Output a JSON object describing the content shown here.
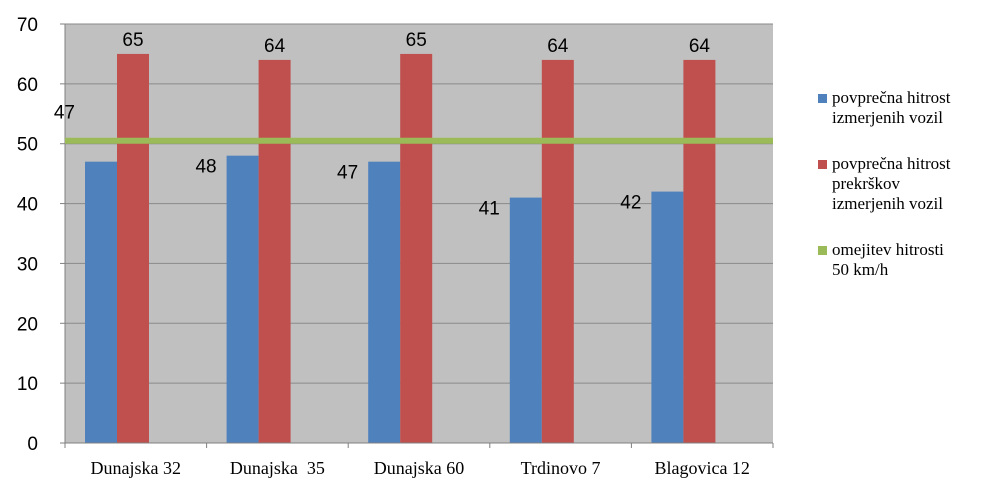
{
  "chart_data": {
    "type": "bar",
    "categories": [
      "Dunajska 32",
      "Dunajska  35",
      "Dunajska 60",
      "Trdinovo 7",
      "Blagovica 12"
    ],
    "series": [
      {
        "name": "povprečna hitrost izmerjenih vozil",
        "values": [
          47,
          48,
          47,
          41,
          42
        ],
        "color": "#4f81bd"
      },
      {
        "name": "povprečna hitrost prekrškov izmerjenih vozil",
        "values": [
          65,
          64,
          65,
          64,
          64
        ],
        "color": "#c0504d"
      }
    ],
    "reference_line": {
      "name": "omejitev hitrosti 50 km/h",
      "value": 50.5,
      "color": "#9bbb59"
    },
    "ylim": [
      0,
      70
    ],
    "yticks": [
      "0",
      "10",
      "20",
      "30",
      "40",
      "50",
      "60",
      "70"
    ],
    "grid": true,
    "plot_background": "#c0c0c0",
    "legend_position": "right",
    "title": "",
    "xlabel": "",
    "ylabel": ""
  },
  "legend": {
    "items": [
      {
        "lines": [
          "povprečna hitrost",
          "izmerjenih vozil"
        ],
        "color": "#4f81bd"
      },
      {
        "lines": [
          "povprečna hitrost",
          "prekrškov",
          "izmerjenih vozil"
        ],
        "color": "#c0504d"
      },
      {
        "lines": [
          "omejitev hitrosti",
          "50 km/h"
        ],
        "color": "#9bbb59"
      }
    ]
  }
}
